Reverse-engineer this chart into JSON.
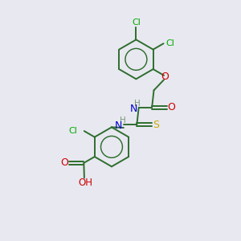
{
  "background_color": "#e8e8f0",
  "bond_color": "#2d6e2d",
  "atom_colors": {
    "C": "#2d6e2d",
    "H": "#7a9a7a",
    "N": "#0000cc",
    "O": "#cc0000",
    "S": "#ccaa00",
    "Cl": "#00aa00"
  },
  "figsize": [
    3.0,
    3.0
  ],
  "dpi": 100
}
